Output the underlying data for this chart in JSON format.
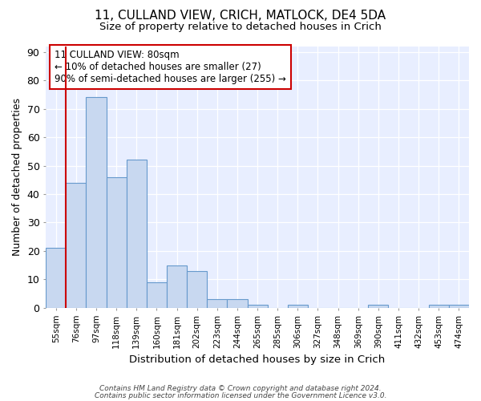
{
  "title": "11, CULLAND VIEW, CRICH, MATLOCK, DE4 5DA",
  "subtitle": "Size of property relative to detached houses in Crich",
  "xlabel": "Distribution of detached houses by size in Crich",
  "ylabel": "Number of detached properties",
  "categories": [
    "55sqm",
    "76sqm",
    "97sqm",
    "118sqm",
    "139sqm",
    "160sqm",
    "181sqm",
    "202sqm",
    "223sqm",
    "244sqm",
    "265sqm",
    "285sqm",
    "306sqm",
    "327sqm",
    "348sqm",
    "369sqm",
    "390sqm",
    "411sqm",
    "432sqm",
    "453sqm",
    "474sqm"
  ],
  "values": [
    21,
    44,
    74,
    46,
    52,
    9,
    15,
    13,
    3,
    3,
    1,
    0,
    1,
    0,
    0,
    0,
    1,
    0,
    0,
    1,
    1
  ],
  "bar_color": "#c8d8f0",
  "bar_edgecolor": "#6699cc",
  "vline_x": 1,
  "vline_color": "#cc0000",
  "ylim": [
    0,
    92
  ],
  "yticks": [
    0,
    10,
    20,
    30,
    40,
    50,
    60,
    70,
    80,
    90
  ],
  "annotation_text": "11 CULLAND VIEW: 80sqm\n← 10% of detached houses are smaller (27)\n90% of semi-detached houses are larger (255) →",
  "annotation_box_color": "#cc0000",
  "footer_line1": "Contains HM Land Registry data © Crown copyright and database right 2024.",
  "footer_line2": "Contains public sector information licensed under the Government Licence v3.0.",
  "background_color": "#e8eeff",
  "title_fontsize": 11,
  "subtitle_fontsize": 9.5,
  "ylabel_fontsize": 9,
  "xlabel_fontsize": 9.5
}
